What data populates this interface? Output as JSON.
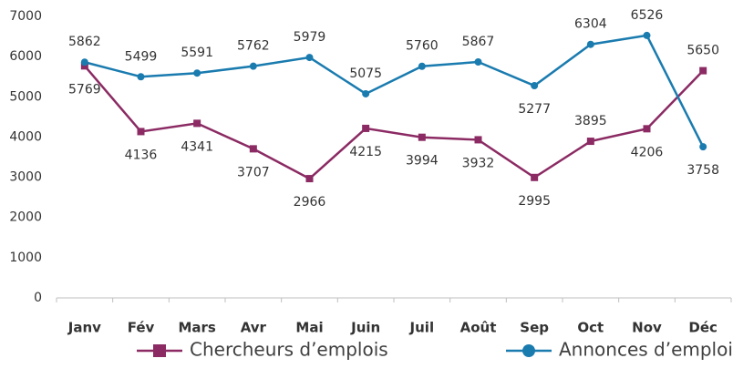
{
  "chart_data": {
    "type": "line",
    "categories": [
      "Janv",
      "Fév",
      "Mars",
      "Avr",
      "Mai",
      "Juin",
      "Juil",
      "Août",
      "Sep",
      "Oct",
      "Nov",
      "Déc"
    ],
    "series": [
      {
        "name": "Chercheurs d’emplois",
        "color": "#8b2a63",
        "marker": "square",
        "values": [
          5769,
          4136,
          4341,
          3707,
          2966,
          4215,
          3994,
          3932,
          2995,
          3895,
          4206,
          5650
        ]
      },
      {
        "name": "Annonces d’emploi",
        "color": "#1a7baf",
        "marker": "circle",
        "values": [
          5862,
          5499,
          5591,
          5762,
          5979,
          5075,
          5760,
          5867,
          5277,
          6304,
          6526,
          3758
        ]
      }
    ],
    "ylim": [
      0,
      7000
    ],
    "yticks": [
      0,
      1000,
      2000,
      3000,
      4000,
      5000,
      6000,
      7000
    ],
    "grid": false,
    "legend": "bottom"
  }
}
